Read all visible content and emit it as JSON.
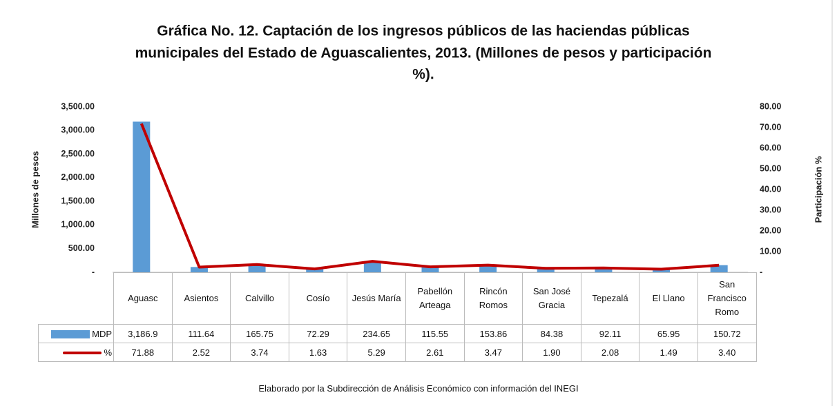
{
  "chart_data": {
    "type": "bar_line",
    "title": [
      "Gráfica No. 12. Captación de los ingresos públicos de las haciendas públicas",
      "municipales del Estado de Aguascalientes, 2013. (Millones de pesos y participación",
      "%)."
    ],
    "ylabel": "Millones de pesos",
    "y2label": "Participación %",
    "footer": "Elaborado por la Subdirección de Análisis Económico con información del INEGI",
    "categories": [
      "Aguasc",
      "Asientos",
      "Calvillo",
      "Cosío",
      "Jesús María",
      "Pabellón Arteaga",
      "Rincón Romos",
      "San José Gracia",
      "Tepezalá",
      "El Llano",
      "San Francisco Romo"
    ],
    "series": [
      {
        "name": "MDP",
        "type": "bar",
        "color": "#5b9bd5",
        "values": [
          3186.9,
          111.64,
          165.75,
          72.29,
          234.65,
          115.55,
          153.86,
          84.38,
          92.11,
          65.95,
          150.72
        ],
        "value_labels": [
          "3,186.9",
          "111.64",
          "165.75",
          "72.29",
          "234.65",
          "115.55",
          "153.86",
          "84.38",
          "92.11",
          "65.95",
          "150.72"
        ]
      },
      {
        "name": "%",
        "type": "line",
        "axis": "y2",
        "color": "#c00000",
        "values": [
          71.88,
          2.52,
          3.74,
          1.63,
          5.29,
          2.61,
          3.47,
          1.9,
          2.08,
          1.49,
          3.4
        ],
        "value_labels": [
          "71.88",
          "2.52",
          "3.74",
          "1.63",
          "5.29",
          "2.61",
          "3.47",
          "1.90",
          "2.08",
          "1.49",
          "3.40"
        ]
      }
    ],
    "ylim": [
      0,
      3500
    ],
    "yticks": [
      {
        "value": 0,
        "label": "-"
      },
      {
        "value": 500,
        "label": "500.00"
      },
      {
        "value": 1000,
        "label": "1,000.00"
      },
      {
        "value": 1500,
        "label": "1,500.00"
      },
      {
        "value": 2000,
        "label": "2,000.00"
      },
      {
        "value": 2500,
        "label": "2,500.00"
      },
      {
        "value": 3000,
        "label": "3,000.00"
      },
      {
        "value": 3500,
        "label": "3,500.00"
      }
    ],
    "y2lim": [
      0,
      80
    ],
    "y2ticks": [
      {
        "value": 0,
        "label": "-"
      },
      {
        "value": 10,
        "label": "10.00"
      },
      {
        "value": 20,
        "label": "20.00"
      },
      {
        "value": 30,
        "label": "30.00"
      },
      {
        "value": 40,
        "label": "40.00"
      },
      {
        "value": 50,
        "label": "50.00"
      },
      {
        "value": 60,
        "label": "60.00"
      },
      {
        "value": 70,
        "label": "70.00"
      },
      {
        "value": 80,
        "label": "80.00"
      }
    ]
  }
}
